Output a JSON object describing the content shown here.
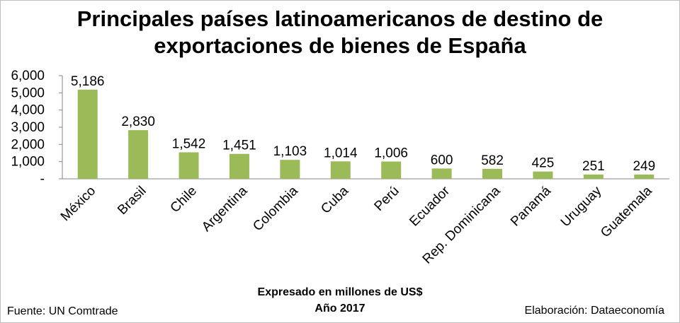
{
  "chart_data": {
    "type": "bar",
    "title_line1": "Principales países latinoamericanos de destino de",
    "title_line2": "exportaciones de bienes de España",
    "categories": [
      "México",
      "Brasil",
      "Chile",
      "Argentina",
      "Colombia",
      "Cuba",
      "Perú",
      "Ecuador",
      "Rep. Dominicana",
      "Panamá",
      "Uruguay",
      "Guatemala"
    ],
    "values": [
      5186,
      2830,
      1542,
      1451,
      1103,
      1014,
      1006,
      600,
      582,
      425,
      251,
      249
    ],
    "value_labels": [
      "5,186",
      "2,830",
      "1,542",
      "1,451",
      "1,103",
      "1,014",
      "1,006",
      "600",
      "582",
      "425",
      "251",
      "249"
    ],
    "yticks": [
      0,
      1000,
      2000,
      3000,
      4000,
      5000,
      6000
    ],
    "ytick_labels": [
      "-",
      "1,000",
      "2,000",
      "3,000",
      "4,000",
      "5,000",
      "6,000"
    ],
    "ylim": [
      0,
      6000
    ],
    "grid": false,
    "legend": "none",
    "bar_color": "#9bbb59",
    "subtitle_line1": "Expresado en millones de US$",
    "subtitle_line2": "Año 2017"
  },
  "footer": {
    "source": "Fuente: UN Comtrade",
    "credit": "Elaboración: Dataeconomía"
  }
}
